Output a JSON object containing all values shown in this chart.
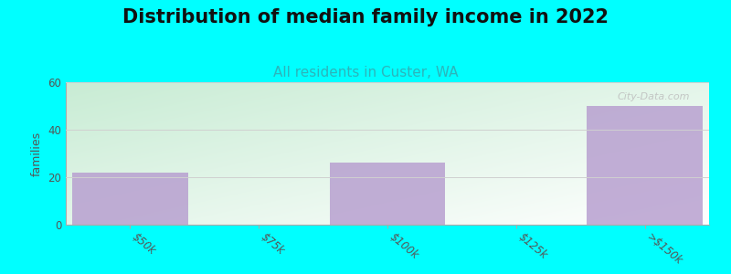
{
  "title": "Distribution of median family income in 2022",
  "subtitle": "All residents in Custer, WA",
  "categories": [
    "$50k",
    "$75k",
    "$100k",
    "$125k",
    ">$150k"
  ],
  "values": [
    22,
    0,
    26,
    0,
    50
  ],
  "bar_color": "#b8a0d0",
  "background_color": "#00FFFF",
  "plot_bg_color_topleft": "#c8ecd4",
  "plot_bg_color_bottomright": "#f8fffe",
  "ylabel": "families",
  "ylim": [
    0,
    60
  ],
  "yticks": [
    0,
    20,
    40,
    60
  ],
  "title_fontsize": 15,
  "subtitle_fontsize": 11,
  "subtitle_color": "#2bb5bb",
  "title_color": "#111111",
  "ylabel_color": "#555555",
  "watermark": "City-Data.com",
  "grid_color": "#d0d0d0",
  "tick_label_color": "#555555",
  "bar_width": 0.9
}
